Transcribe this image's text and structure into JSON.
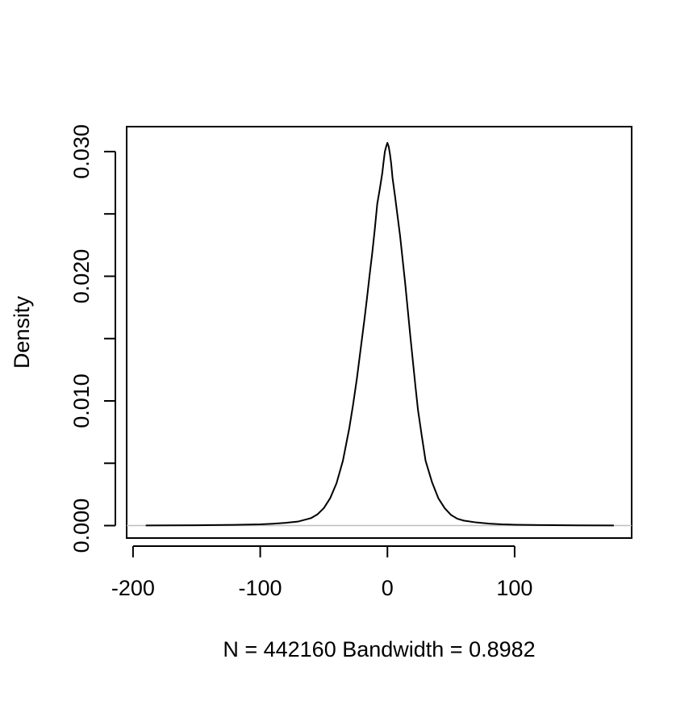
{
  "chart_data": {
    "type": "line",
    "title": "",
    "xlabel": "N = 442160   Bandwidth = 0.8982",
    "ylabel": "Density",
    "xlim": [
      -205,
      192
    ],
    "ylim": [
      -0.001,
      0.032
    ],
    "x_ticks": [
      -200,
      -100,
      0,
      100
    ],
    "x_tick_labels": [
      "-200",
      "-100",
      "0",
      "100"
    ],
    "y_ticks": [
      0.0,
      0.005,
      0.01,
      0.015,
      0.02,
      0.025,
      0.03
    ],
    "y_tick_labels": [
      "0.000",
      "",
      "0.010",
      "",
      "0.020",
      "",
      "0.030"
    ],
    "grid": false,
    "legend": "none",
    "zero_line": {
      "y": 0,
      "color": "#bebebe"
    },
    "series": [
      {
        "color": "#000000",
        "x": [
          -190,
          -150,
          -120,
          -100,
          -90,
          -80,
          -70,
          -60,
          -55,
          -50,
          -45,
          -40,
          -35,
          -30,
          -27,
          -24,
          -22,
          -20,
          -18,
          -16,
          -14,
          -12,
          -10,
          -8,
          -6,
          -4,
          -3,
          -2,
          -1,
          0,
          1,
          2,
          3,
          4,
          6,
          8,
          10,
          12,
          14,
          16,
          18,
          20,
          22,
          24,
          27,
          30,
          35,
          40,
          45,
          50,
          55,
          60,
          70,
          80,
          90,
          100,
          120,
          150,
          178
        ],
        "y": [
          1e-05,
          3e-05,
          6e-05,
          0.0001,
          0.00015,
          0.00022,
          0.00033,
          0.0006,
          0.0009,
          0.0014,
          0.0022,
          0.0034,
          0.0052,
          0.0078,
          0.0097,
          0.0118,
          0.0134,
          0.015,
          0.0166,
          0.0183,
          0.0201,
          0.0218,
          0.0237,
          0.0258,
          0.027,
          0.0283,
          0.0292,
          0.03,
          0.0304,
          0.0307,
          0.0304,
          0.0298,
          0.029,
          0.0279,
          0.0264,
          0.0248,
          0.0232,
          0.0213,
          0.0194,
          0.0173,
          0.0152,
          0.0132,
          0.0112,
          0.0093,
          0.0072,
          0.0052,
          0.0035,
          0.0022,
          0.0014,
          0.00085,
          0.00055,
          0.0004,
          0.00025,
          0.00016,
          0.0001,
          7e-05,
          4e-05,
          2e-05,
          1e-05
        ]
      }
    ]
  }
}
